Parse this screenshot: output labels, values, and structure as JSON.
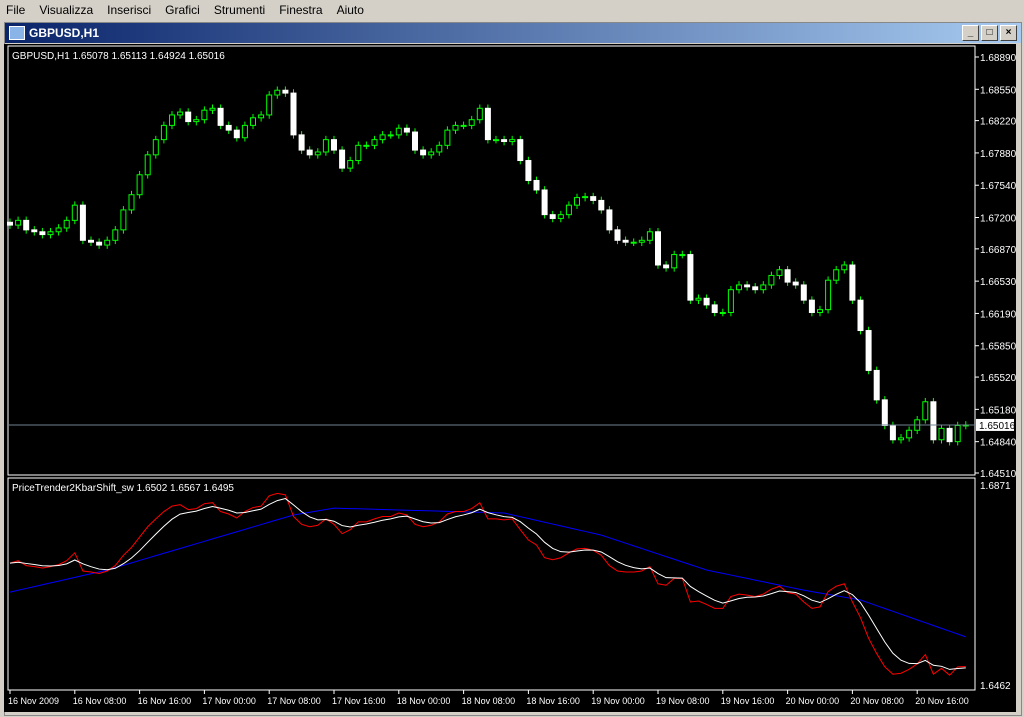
{
  "menu": [
    "File",
    "Visualizza",
    "Inserisci",
    "Grafici",
    "Strumenti",
    "Finestra",
    "Aiuto"
  ],
  "window": {
    "title": "GBPUSD,H1",
    "buttons": [
      "_",
      "□",
      "×"
    ]
  },
  "main_label": "GBPUSD,H1  1.65078 1.65113 1.64924 1.65016",
  "indicator_label": "PriceTrender2KbarShift_sw 1.6502 1.6567 1.6495",
  "price_ticks": [
    "1.68890",
    "1.68550",
    "1.68220",
    "1.67880",
    "1.67540",
    "1.67200",
    "1.66870",
    "1.66530",
    "1.66190",
    "1.65850",
    "1.65520",
    "1.65180",
    "1.64840",
    "1.64510"
  ],
  "current_price": "1.65016",
  "indicator_ticks": [
    "1.6871",
    "1.6462"
  ],
  "time_ticks": [
    "16 Nov 2009",
    "16 Nov 08:00",
    "16 Nov 16:00",
    "17 Nov 00:00",
    "17 Nov 08:00",
    "17 Nov 16:00",
    "18 Nov 00:00",
    "18 Nov 08:00",
    "18 Nov 16:00",
    "19 Nov 00:00",
    "19 Nov 08:00",
    "19 Nov 16:00",
    "20 Nov 00:00",
    "20 Nov 08:00",
    "20 Nov 16:00"
  ],
  "colors": {
    "bg": "#000000",
    "bull": "#00ff00",
    "bear": "#ffffff",
    "fast": "#ff0000",
    "smooth": "#ffffff",
    "slow": "#0000ff",
    "price_line": "#708090"
  },
  "chart_data": {
    "type": "candlestick",
    "price_range": [
      1.6451,
      1.6889
    ],
    "indicator_range": [
      1.6462,
      1.6871
    ],
    "closes": [
      1.6712,
      1.6717,
      1.6707,
      1.6705,
      1.6702,
      1.6705,
      1.6709,
      1.6717,
      1.6733,
      1.6696,
      1.6694,
      1.6691,
      1.6696,
      1.6707,
      1.6728,
      1.6744,
      1.6765,
      1.6786,
      1.6802,
      1.6817,
      1.6828,
      1.6831,
      1.6821,
      1.6823,
      1.6833,
      1.6835,
      1.6817,
      1.6812,
      1.6804,
      1.6817,
      1.6825,
      1.6828,
      1.6849,
      1.6854,
      1.6851,
      1.6807,
      1.6791,
      1.6786,
      1.6789,
      1.6802,
      1.6791,
      1.6772,
      1.678,
      1.6796,
      1.6796,
      1.6802,
      1.6807,
      1.6807,
      1.6814,
      1.681,
      1.6791,
      1.6786,
      1.6789,
      1.6796,
      1.6812,
      1.6817,
      1.6817,
      1.6823,
      1.6835,
      1.6802,
      1.6802,
      1.68,
      1.6802,
      1.678,
      1.6759,
      1.6749,
      1.6723,
      1.6719,
      1.6723,
      1.6733,
      1.6741,
      1.6742,
      1.6738,
      1.6728,
      1.6707,
      1.6696,
      1.6694,
      1.6694,
      1.6696,
      1.6705,
      1.667,
      1.6667,
      1.6681,
      1.6681,
      1.6633,
      1.6635,
      1.6628,
      1.662,
      1.662,
      1.6644,
      1.6649,
      1.6647,
      1.6644,
      1.6649,
      1.6659,
      1.6665,
      1.6652,
      1.6649,
      1.6633,
      1.662,
      1.6623,
      1.6654,
      1.6665,
      1.667,
      1.6633,
      1.6601,
      1.6559,
      1.6528,
      1.6501,
      1.6486,
      1.6488,
      1.6496,
      1.6507,
      1.6526,
      1.6486,
      1.6498,
      1.6484,
      1.6501,
      1.65016
    ],
    "slow_line": [
      [
        0,
        1.6653
      ],
      [
        12,
        1.6698
      ],
      [
        35,
        1.681
      ],
      [
        40,
        1.6824
      ],
      [
        61,
        1.6814
      ],
      [
        73,
        1.6769
      ],
      [
        86,
        1.6698
      ],
      [
        98,
        1.6657
      ],
      [
        105,
        1.6637
      ],
      [
        118,
        1.6562
      ]
    ]
  }
}
